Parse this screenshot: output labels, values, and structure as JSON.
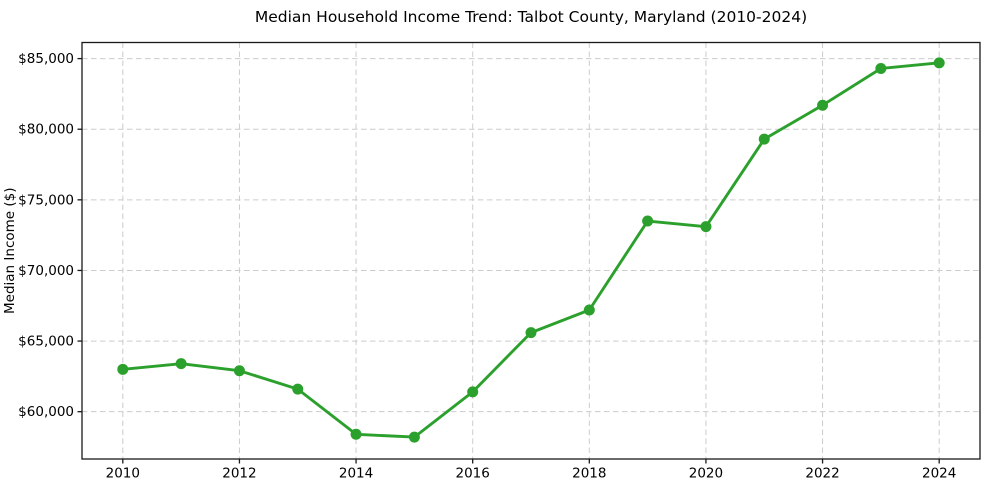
{
  "chart_data": {
    "type": "line",
    "title": "Median Household Income Trend: Talbot County, Maryland (2010-2024)",
    "xlabel": "",
    "ylabel": "Median Income ($)",
    "x": [
      2010,
      2011,
      2012,
      2013,
      2014,
      2015,
      2016,
      2017,
      2018,
      2019,
      2020,
      2021,
      2022,
      2023,
      2024
    ],
    "series": [
      {
        "name": "Median Household Income",
        "values": [
          63000,
          63400,
          62900,
          61600,
          58400,
          58200,
          61400,
          65600,
          67200,
          73500,
          73100,
          79300,
          81700,
          84300,
          84700
        ]
      }
    ],
    "x_ticks": [
      2010,
      2012,
      2014,
      2016,
      2018,
      2020,
      2022,
      2024
    ],
    "x_tick_labels": [
      "2010",
      "2012",
      "2014",
      "2016",
      "2018",
      "2020",
      "2022",
      "2024"
    ],
    "y_ticks": [
      60000,
      65000,
      70000,
      75000,
      80000,
      85000
    ],
    "y_tick_labels": [
      "$60,000",
      "$65,000",
      "$70,000",
      "$75,000",
      "$80,000",
      "$85,000"
    ],
    "xlim": [
      2009.3,
      2024.7
    ],
    "ylim": [
      56650,
      86140
    ],
    "grid": true,
    "grid_style": "dashed",
    "legend": "none",
    "marker": "circle",
    "colors": {
      "line": "#2ca02c",
      "marker": "#2ca02c",
      "grid": "#cccccc",
      "axis": "#1a1a1a",
      "text": "#000000",
      "background": "#ffffff"
    }
  }
}
